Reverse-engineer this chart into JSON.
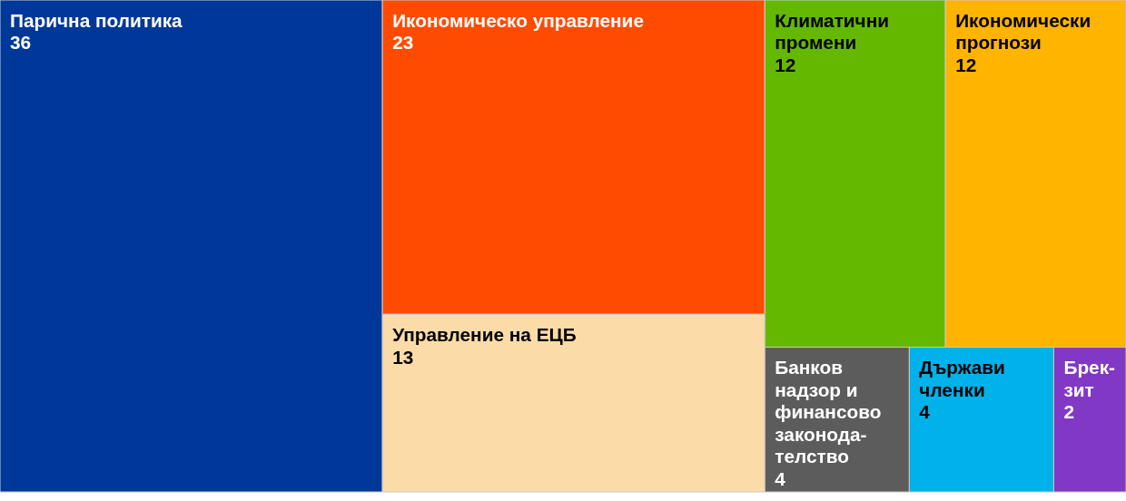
{
  "chart_data": {
    "type": "other",
    "categories": [
      "Парична политика",
      "Икономическо управление",
      "Управление на ЕЦБ",
      "Климатични промени",
      "Икономически прогнози",
      "Банков надзор и финансово законода-телство",
      "Държави членки",
      "Брек-зит"
    ],
    "values": [
      36,
      23,
      13,
      12,
      12,
      4,
      4,
      2
    ],
    "colors": [
      "#003899",
      "#ff4b00",
      "#fbdba7",
      "#65b800",
      "#ffb400",
      "#5c5c5c",
      "#00b1ea",
      "#8138c4"
    ],
    "data_labels": true
  }
}
